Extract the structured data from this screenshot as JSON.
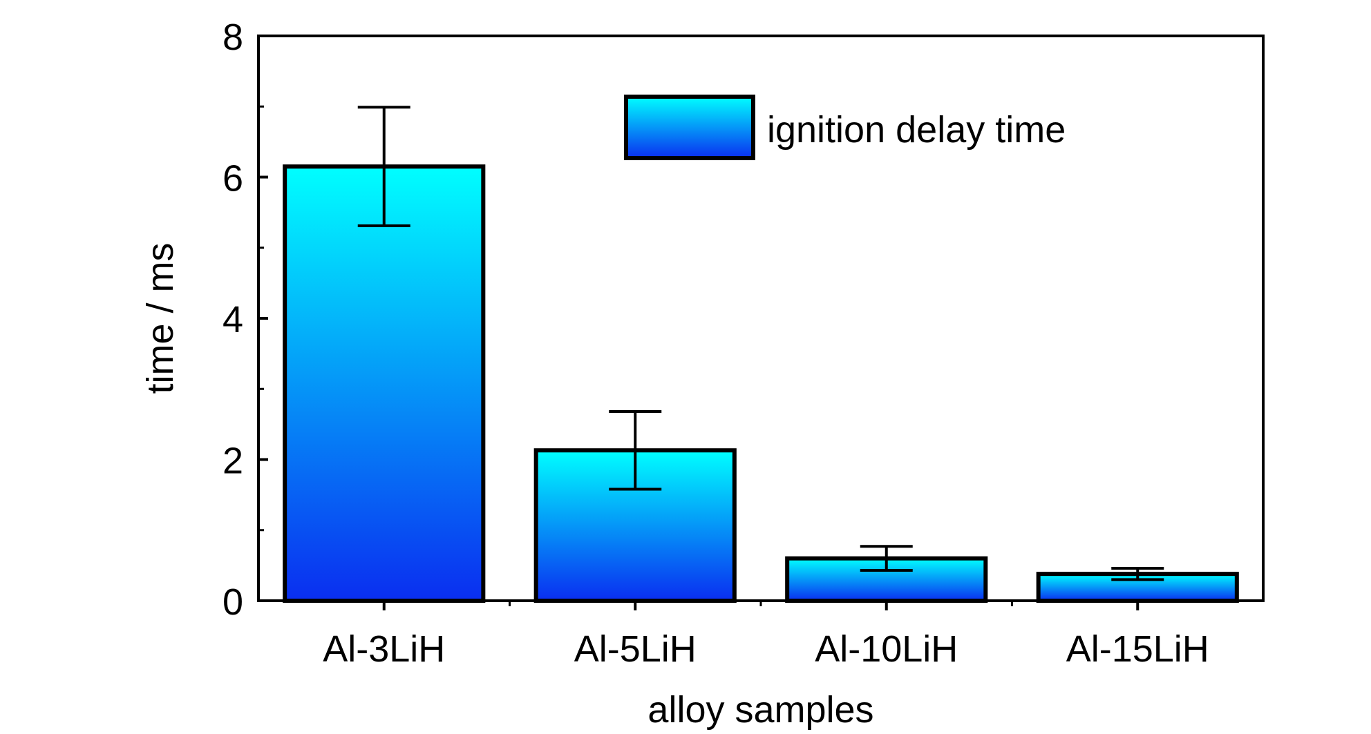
{
  "chart_data": {
    "type": "bar",
    "categories": [
      "Al-3LiH",
      "Al-5LiH",
      "Al-10LiH",
      "Al-15LiH"
    ],
    "series": [
      {
        "name": "ignition delay time",
        "values": [
          6.15,
          2.13,
          0.6,
          0.38
        ],
        "error": [
          0.84,
          0.55,
          0.17,
          0.08
        ]
      }
    ],
    "xlabel": "alloy samples",
    "ylabel": "time / ms",
    "ylim": [
      0,
      8
    ],
    "yticks": [
      0,
      2,
      4,
      6,
      8
    ],
    "grid": false,
    "legend_position": "top-right",
    "colors": {
      "bar_top": "#00ffff",
      "bar_bottom": "#0a2ef0",
      "stroke": "#000000"
    }
  }
}
